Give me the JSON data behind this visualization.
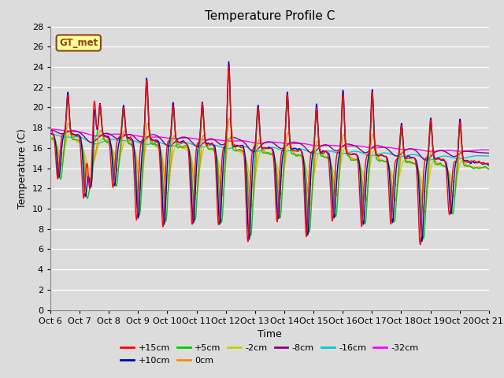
{
  "title": "Temperature Profile C",
  "xlabel": "Time",
  "ylabel": "Temperature (C)",
  "ylim": [
    0,
    28
  ],
  "xlim": [
    0,
    15
  ],
  "x_tick_labels": [
    "Oct 6",
    "Oct 7",
    "Oct 8",
    "Oct 9",
    "Oct 10",
    "Oct 11",
    "Oct 12",
    "Oct 13",
    "Oct 14",
    "Oct 15",
    "Oct 16",
    "Oct 17",
    "Oct 18",
    "Oct 19",
    "Oct 20",
    "Oct 21"
  ],
  "background_color": "#dcdcdc",
  "plot_bg_color": "#dcdcdc",
  "grid_color": "#ffffff",
  "annotation_text": "GT_met",
  "annotation_box_color": "#ffff99",
  "annotation_border_color": "#8B4513",
  "legend": [
    {
      "label": "+15cm",
      "color": "#ff0000"
    },
    {
      "label": "+10cm",
      "color": "#0000cc"
    },
    {
      "label": "+5cm",
      "color": "#00cc00"
    },
    {
      "label": "0cm",
      "color": "#ff8800"
    },
    {
      "label": "-2cm",
      "color": "#cccc00"
    },
    {
      "label": "-8cm",
      "color": "#880088"
    },
    {
      "label": "-16cm",
      "color": "#00cccc"
    },
    {
      "label": "-32cm",
      "color": "#ff00ff"
    }
  ]
}
